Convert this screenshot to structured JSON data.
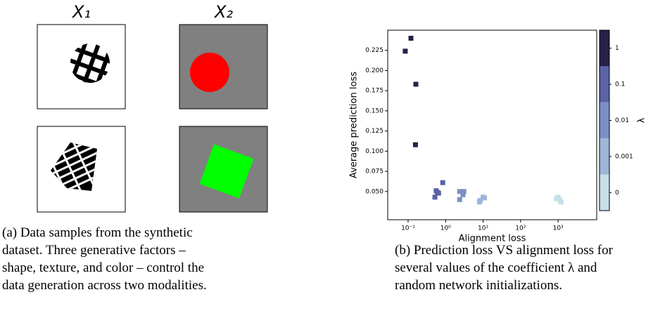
{
  "figure_a": {
    "column_labels": [
      "X₁",
      "X₂"
    ],
    "caption_lines": [
      "(a) Data samples from the synthetic",
      "dataset. Three generative factors –",
      "shape, texture, and color – control the",
      "data generation across two modalities."
    ]
  },
  "figure_b": {
    "caption_lines": [
      "(b) Prediction loss VS alignment loss for",
      "several values of the coefficient λ and",
      "random network initializations."
    ]
  },
  "chart_data": {
    "type": "scatter",
    "x_label": "Alignment loss",
    "y_label": "Average prediction loss",
    "x_log": true,
    "xlim": [
      0.0286,
      10700
    ],
    "ylim": [
      0.015,
      0.25
    ],
    "xticks": [
      {
        "value": 0.1,
        "label": "10⁻¹"
      },
      {
        "value": 1,
        "label": "10⁰"
      },
      {
        "value": 10,
        "label": "10¹"
      },
      {
        "value": 100,
        "label": "10²"
      },
      {
        "value": 1000,
        "label": "10³"
      }
    ],
    "yticks": [
      {
        "value": 0.05,
        "label": "0.050"
      },
      {
        "value": 0.075,
        "label": "0.075"
      },
      {
        "value": 0.1,
        "label": "0.100"
      },
      {
        "value": 0.125,
        "label": "0.125"
      },
      {
        "value": 0.15,
        "label": "0.150"
      },
      {
        "value": 0.175,
        "label": "0.175"
      },
      {
        "value": 0.2,
        "label": "0.200"
      },
      {
        "value": 0.225,
        "label": "0.225"
      }
    ],
    "colorbar_label": "λ",
    "series": [
      {
        "name": "0",
        "color": "#c6dfe9",
        "x": [
          1000,
          1100,
          900,
          1200
        ],
        "values": [
          0.043,
          0.04,
          0.041,
          0.037
        ]
      },
      {
        "name": "0.001",
        "color": "#9eb6d8",
        "x": [
          10,
          8.4,
          10.9,
          8.0
        ],
        "values": [
          0.043,
          0.039,
          0.042,
          0.037
        ]
      },
      {
        "name": "0.01",
        "color": "#7c8fc4",
        "x": [
          2.37,
          3.06,
          2.9,
          2.37
        ],
        "values": [
          0.05,
          0.05,
          0.046,
          0.04
        ]
      },
      {
        "name": "0.1",
        "color": "#5a63a4",
        "x": [
          0.56,
          0.65,
          0.52,
          0.6,
          0.84
        ],
        "values": [
          0.051,
          0.048,
          0.043,
          0.049,
          0.061
        ]
      },
      {
        "name": "1",
        "color": "#262149",
        "x": [
          0.119,
          0.084,
          0.161,
          0.157
        ],
        "values": [
          0.24,
          0.224,
          0.183,
          0.108
        ]
      }
    ]
  }
}
